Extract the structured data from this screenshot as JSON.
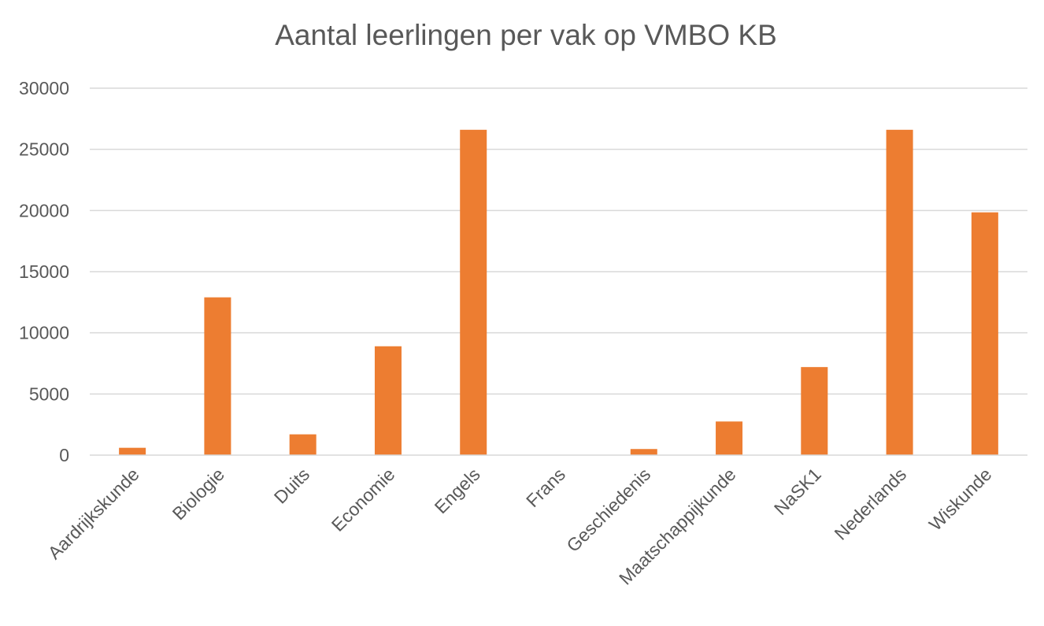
{
  "chart_data": {
    "type": "bar",
    "title": "Aantal leerlingen per vak op VMBO KB",
    "categories": [
      "Aardrijkskunde",
      "Biologie",
      "Duits",
      "Economie",
      "Engels",
      "Frans",
      "Geschiedenis",
      "Maatschappijkunde",
      "NaSK1",
      "Nederlands",
      "Wiskunde"
    ],
    "values": [
      600,
      12900,
      1700,
      8900,
      26600,
      0,
      500,
      2750,
      7200,
      26600,
      19850
    ],
    "ylim": [
      0,
      30000
    ],
    "yticks": [
      "0",
      "5000",
      "10000",
      "15000",
      "20000",
      "25000",
      "30000"
    ],
    "xlabel": "",
    "ylabel": "",
    "grid": true,
    "legend": "none",
    "bar_color": "#ED7D31",
    "grid_color": "#D9D9D9",
    "text_color": "#595959"
  }
}
